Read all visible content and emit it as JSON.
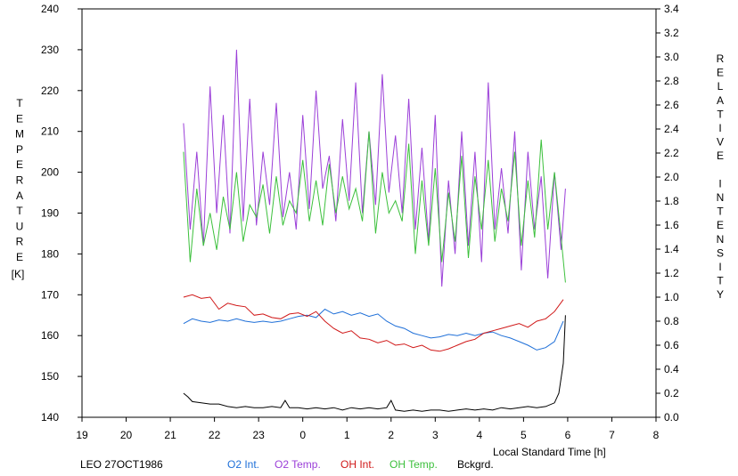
{
  "chart_data": {
    "type": "line",
    "xlabel": "Local Standard Time [h]",
    "ylabel_left_letters": [
      "T",
      "E",
      "M",
      "P",
      "E",
      "R",
      "A",
      "T",
      "U",
      "R",
      "E"
    ],
    "ylabel_left_unit": "[K]",
    "ylabel_right_letters": [
      "R",
      "E",
      "L",
      "A",
      "T",
      "I",
      "V",
      "E",
      "",
      "I",
      "N",
      "T",
      "E",
      "N",
      "S",
      "I",
      "T",
      "Y"
    ],
    "caption": "LEO 27OCT1986",
    "x_tick_labels": [
      "19",
      "20",
      "21",
      "22",
      "23",
      "0",
      "1",
      "2",
      "3",
      "4",
      "5",
      "6",
      "7",
      "8"
    ],
    "xlim": [
      19,
      32
    ],
    "ylim_left": [
      140,
      240
    ],
    "ylim_right": [
      0.0,
      3.4
    ],
    "y_left_ticks": [
      140,
      150,
      160,
      170,
      180,
      190,
      200,
      210,
      220,
      230,
      240
    ],
    "y_right_ticks": [
      "0.0",
      "0.2",
      "0.4",
      "0.6",
      "0.8",
      "1.0",
      "1.2",
      "1.4",
      "1.6",
      "1.8",
      "2.0",
      "2.2",
      "2.4",
      "2.6",
      "2.8",
      "3.0",
      "3.2",
      "3.4"
    ],
    "grid": false,
    "legend_position": "bottom",
    "series": [
      {
        "name": "O2 Int.",
        "axis": "right",
        "color": "#1e6fd8",
        "x": [
          21.3,
          21.5,
          21.7,
          21.9,
          22.1,
          22.3,
          22.5,
          22.7,
          22.9,
          23.1,
          23.3,
          23.5,
          23.7,
          23.9,
          24.1,
          24.3,
          24.5,
          24.7,
          24.9,
          25.1,
          25.3,
          25.5,
          25.7,
          25.9,
          26.1,
          26.3,
          26.5,
          26.7,
          26.9,
          27.1,
          27.3,
          27.5,
          27.7,
          27.9,
          28.1,
          28.3,
          28.5,
          28.7,
          28.9,
          29.1,
          29.3,
          29.5,
          29.7,
          29.9
        ],
        "values": [
          0.78,
          0.82,
          0.8,
          0.79,
          0.81,
          0.8,
          0.82,
          0.8,
          0.79,
          0.8,
          0.79,
          0.8,
          0.82,
          0.84,
          0.85,
          0.83,
          0.9,
          0.86,
          0.88,
          0.85,
          0.87,
          0.84,
          0.86,
          0.8,
          0.76,
          0.74,
          0.7,
          0.68,
          0.66,
          0.67,
          0.69,
          0.68,
          0.7,
          0.68,
          0.7,
          0.71,
          0.68,
          0.66,
          0.63,
          0.6,
          0.56,
          0.58,
          0.63,
          0.8
        ]
      },
      {
        "name": "O2 Temp.",
        "axis": "left",
        "color": "#9b3fd8",
        "x": [
          21.3,
          21.45,
          21.6,
          21.75,
          21.9,
          22.05,
          22.2,
          22.35,
          22.5,
          22.65,
          22.8,
          22.95,
          23.1,
          23.25,
          23.4,
          23.55,
          23.7,
          23.85,
          24.0,
          24.15,
          24.3,
          24.45,
          24.6,
          24.75,
          24.9,
          25.05,
          25.2,
          25.35,
          25.5,
          25.65,
          25.8,
          25.95,
          26.1,
          26.25,
          26.4,
          26.55,
          26.7,
          26.85,
          27.0,
          27.15,
          27.3,
          27.45,
          27.6,
          27.75,
          27.9,
          28.05,
          28.2,
          28.35,
          28.5,
          28.65,
          28.8,
          28.95,
          29.1,
          29.25,
          29.4,
          29.55,
          29.7,
          29.85,
          29.95
        ],
        "values": [
          212,
          186,
          205,
          182,
          221,
          190,
          214,
          185,
          230,
          188,
          218,
          187,
          205,
          192,
          217,
          189,
          200,
          186,
          214,
          191,
          220,
          196,
          204,
          188,
          213,
          193,
          222,
          190,
          210,
          192,
          224,
          195,
          209,
          190,
          218,
          186,
          206,
          183,
          214,
          172,
          198,
          180,
          210,
          182,
          205,
          178,
          222,
          186,
          201,
          185,
          210,
          176,
          205,
          186,
          199,
          174,
          200,
          181,
          196
        ]
      },
      {
        "name": "OH Int.",
        "axis": "right",
        "color": "#d01818",
        "x": [
          21.3,
          21.5,
          21.7,
          21.9,
          22.1,
          22.3,
          22.5,
          22.7,
          22.9,
          23.1,
          23.3,
          23.5,
          23.7,
          23.9,
          24.1,
          24.3,
          24.5,
          24.7,
          24.9,
          25.1,
          25.3,
          25.5,
          25.7,
          25.9,
          26.1,
          26.3,
          26.5,
          26.7,
          26.9,
          27.1,
          27.3,
          27.5,
          27.7,
          27.9,
          28.1,
          28.3,
          28.5,
          28.7,
          28.9,
          29.1,
          29.3,
          29.5,
          29.7,
          29.9
        ],
        "values": [
          1.0,
          1.02,
          0.99,
          1.0,
          0.9,
          0.95,
          0.93,
          0.92,
          0.85,
          0.86,
          0.83,
          0.82,
          0.86,
          0.87,
          0.84,
          0.88,
          0.8,
          0.74,
          0.7,
          0.72,
          0.66,
          0.65,
          0.62,
          0.64,
          0.6,
          0.61,
          0.58,
          0.6,
          0.56,
          0.55,
          0.57,
          0.6,
          0.63,
          0.65,
          0.7,
          0.72,
          0.74,
          0.76,
          0.78,
          0.75,
          0.8,
          0.82,
          0.88,
          0.98
        ]
      },
      {
        "name": "OH Temp.",
        "axis": "left",
        "color": "#3cc03c",
        "x": [
          21.3,
          21.45,
          21.6,
          21.75,
          21.9,
          22.05,
          22.2,
          22.35,
          22.5,
          22.65,
          22.8,
          22.95,
          23.1,
          23.25,
          23.4,
          23.55,
          23.7,
          23.85,
          24.0,
          24.15,
          24.3,
          24.45,
          24.6,
          24.75,
          24.9,
          25.05,
          25.2,
          25.35,
          25.5,
          25.65,
          25.8,
          25.95,
          26.1,
          26.25,
          26.4,
          26.55,
          26.7,
          26.85,
          27.0,
          27.15,
          27.3,
          27.45,
          27.6,
          27.75,
          27.9,
          28.05,
          28.2,
          28.35,
          28.5,
          28.65,
          28.8,
          28.95,
          29.1,
          29.25,
          29.4,
          29.55,
          29.7,
          29.85,
          29.95
        ],
        "values": [
          205,
          178,
          196,
          182,
          190,
          181,
          194,
          186,
          200,
          183,
          192,
          189,
          197,
          185,
          199,
          187,
          193,
          190,
          203,
          188,
          198,
          187,
          202,
          190,
          199,
          191,
          196,
          188,
          210,
          185,
          200,
          190,
          193,
          188,
          207,
          180,
          198,
          182,
          201,
          178,
          195,
          183,
          204,
          179,
          199,
          186,
          203,
          183,
          196,
          188,
          205,
          182,
          198,
          184,
          208,
          186,
          200,
          184,
          173
        ]
      },
      {
        "name": "Bckgrd.",
        "axis": "right",
        "color": "#000000",
        "x": [
          21.3,
          21.4,
          21.5,
          21.7,
          21.9,
          22.1,
          22.3,
          22.5,
          22.7,
          22.9,
          23.1,
          23.3,
          23.5,
          23.6,
          23.7,
          23.9,
          24.1,
          24.3,
          24.5,
          24.7,
          24.9,
          25.1,
          25.3,
          25.5,
          25.7,
          25.9,
          26.0,
          26.1,
          26.3,
          26.5,
          26.7,
          26.9,
          27.1,
          27.3,
          27.5,
          27.7,
          27.9,
          28.1,
          28.3,
          28.5,
          28.7,
          28.9,
          29.1,
          29.3,
          29.5,
          29.7,
          29.8,
          29.9,
          29.95
        ],
        "values": [
          0.2,
          0.17,
          0.13,
          0.12,
          0.11,
          0.11,
          0.09,
          0.08,
          0.09,
          0.08,
          0.08,
          0.09,
          0.08,
          0.14,
          0.08,
          0.08,
          0.07,
          0.08,
          0.07,
          0.08,
          0.06,
          0.08,
          0.07,
          0.08,
          0.07,
          0.08,
          0.14,
          0.06,
          0.05,
          0.06,
          0.05,
          0.06,
          0.06,
          0.05,
          0.06,
          0.07,
          0.06,
          0.07,
          0.06,
          0.08,
          0.07,
          0.08,
          0.09,
          0.08,
          0.09,
          0.12,
          0.2,
          0.45,
          0.85
        ]
      }
    ]
  }
}
